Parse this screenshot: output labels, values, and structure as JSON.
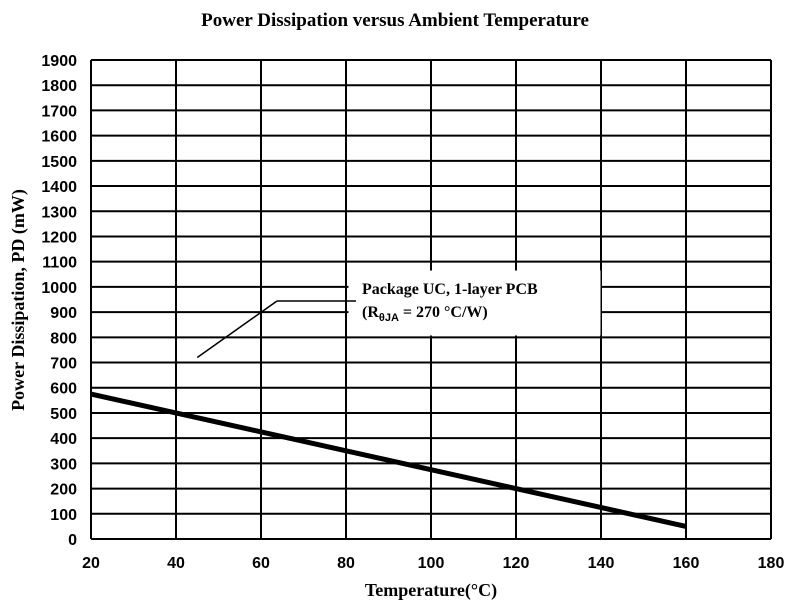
{
  "chart_data": {
    "type": "line",
    "title": "Power Dissipation versus Ambient Temperature",
    "xlabel": "Temperature(°C)",
    "ylabel": "Power Dissipation, PD (mW)",
    "xlim": [
      20,
      180
    ],
    "ylim": [
      0,
      1900
    ],
    "x_ticks": [
      20,
      40,
      60,
      80,
      100,
      120,
      140,
      160,
      180
    ],
    "y_ticks": [
      0,
      100,
      200,
      300,
      400,
      500,
      600,
      700,
      800,
      900,
      1000,
      1100,
      1200,
      1300,
      1400,
      1500,
      1600,
      1700,
      1800,
      1900
    ],
    "grid": true,
    "series": [
      {
        "name": "Package UC, 1-layer PCB (RθJA = 270 °C/W)",
        "x": [
          20,
          160
        ],
        "y": [
          575,
          50
        ]
      }
    ],
    "annotation": {
      "line1": "Package UC, 1-layer PCB",
      "line2_open": "(R",
      "line2_sub": "θJA",
      "line2_close": " = 270 °C/W)",
      "points_to": {
        "x": 45,
        "y": 720
      }
    }
  }
}
